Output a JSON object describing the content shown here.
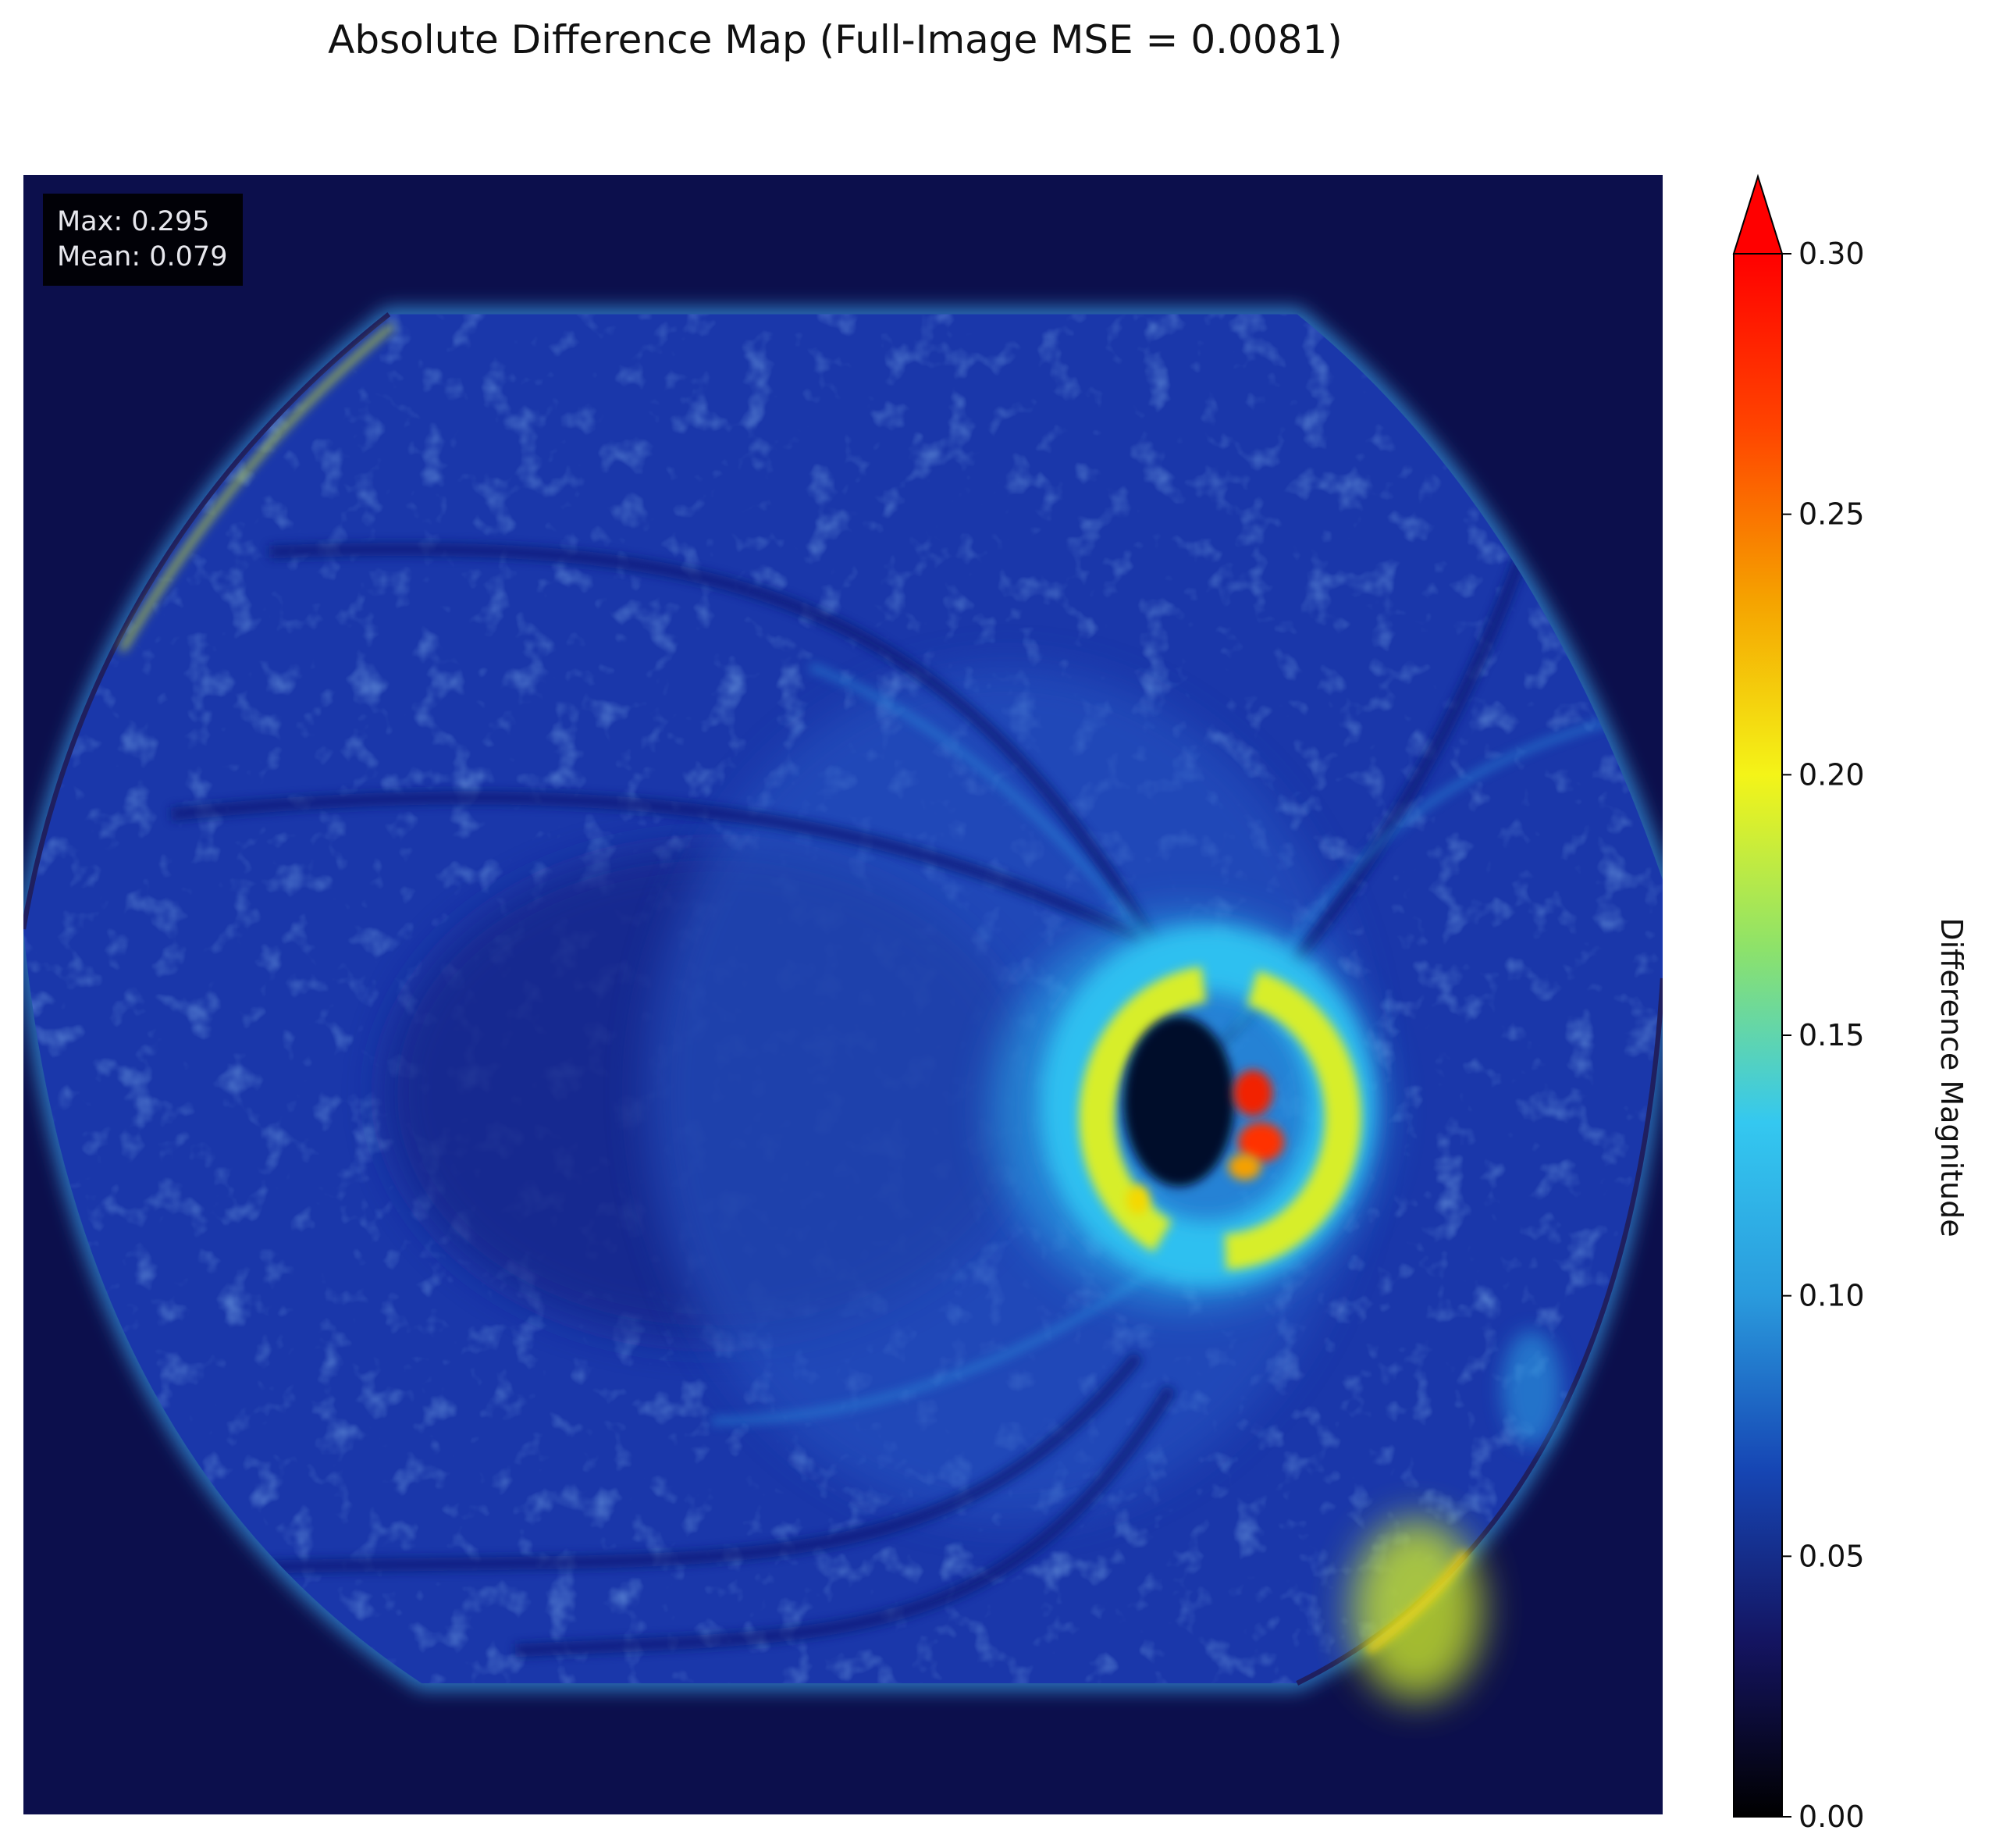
{
  "title": "Absolute Difference Map (Full-Image MSE = 0.0081)",
  "stats": {
    "max_label": "Max: 0.295",
    "mean_label": "Mean: 0.079"
  },
  "colorbar": {
    "label": "Difference Magnitude",
    "colormap": "jet",
    "colors": [
      "#000000",
      "#141460",
      "#1646b4",
      "#2a9bdd",
      "#34c8f0",
      "#8de26a",
      "#f4f418",
      "#f5a300",
      "#ff4400",
      "#ff0000"
    ],
    "extend": "max",
    "ticks": [
      "0.00",
      "0.05",
      "0.10",
      "0.15",
      "0.20",
      "0.25",
      "0.30"
    ]
  },
  "chart_data": {
    "type": "heatmap",
    "title": "Absolute Difference Map (Full-Image MSE = 0.0081)",
    "colorbar_label": "Difference Magnitude",
    "vmin": 0.0,
    "vmax": 0.3,
    "max": 0.295,
    "mean": 0.079,
    "mse": 0.0081,
    "colorbar_ticks": [
      0.0,
      0.05,
      0.1,
      0.15,
      0.2,
      0.25,
      0.3
    ],
    "axes_visible": false,
    "annotation_placement": "top-left"
  }
}
